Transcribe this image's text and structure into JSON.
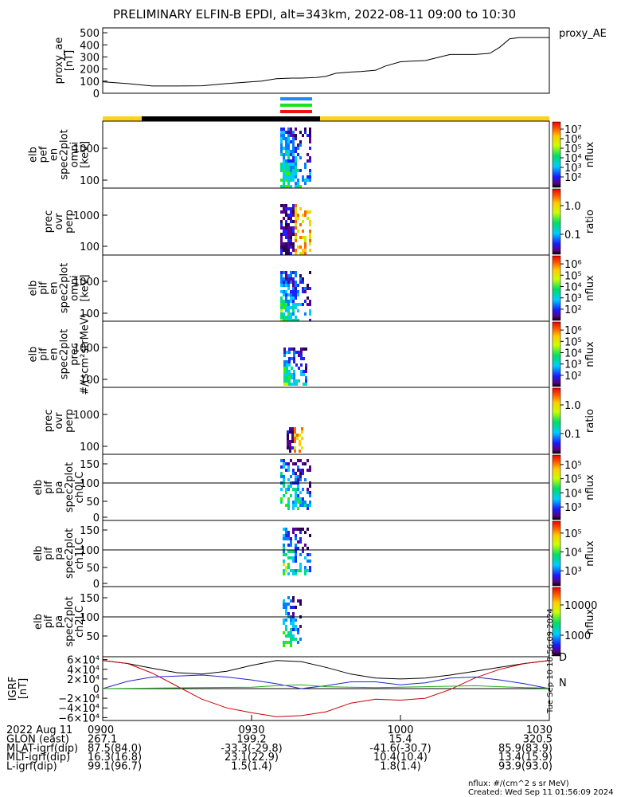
{
  "title": "PRELIMINARY ELFIN-B EPDI, alt=343km, 2022-08-11 09:00 to 10:30",
  "chart_data": [
    {
      "type": "line",
      "panel": "proxy_ae",
      "ylabel": "proxy_ae [nT]",
      "ytick_labels": [
        "0",
        "100",
        "200",
        "300",
        "400",
        "500"
      ],
      "ylim": [
        0,
        540
      ],
      "series": [
        {
          "name": "proxy_AE",
          "x_minutes_after_0900": [
            0,
            5,
            10,
            15,
            20,
            25,
            30,
            32,
            35,
            38,
            40,
            43,
            45,
            47,
            50,
            52,
            55,
            57,
            60,
            62,
            65,
            68,
            70,
            73,
            75,
            78,
            80,
            82,
            84,
            86,
            88,
            90
          ],
          "values": [
            95,
            80,
            60,
            60,
            62,
            80,
            95,
            100,
            120,
            125,
            125,
            130,
            140,
            165,
            175,
            180,
            190,
            225,
            260,
            265,
            270,
            300,
            320,
            320,
            320,
            330,
            380,
            450,
            460,
            460,
            460,
            460
          ]
        }
      ]
    },
    {
      "type": "heatmap",
      "panel": "elb pef en spec2plot omni",
      "ylabel": "elb pef en spec2plot omni [keV]",
      "yscale": "log",
      "ytick_labels": [
        "100",
        "1000"
      ],
      "colorbar_label": "nflux",
      "colorbar_ticks": [
        "10²",
        "10³",
        "10⁴",
        "10⁵",
        "10⁶",
        "10⁷"
      ]
    },
    {
      "type": "heatmap",
      "panel": "prec ovr perp",
      "ylabel": "prec ovr perp",
      "yscale": "log",
      "ytick_labels": [
        "100",
        "1000"
      ],
      "colorbar_label": "ratio",
      "colorbar_ticks": [
        "0.1",
        "1.0"
      ]
    },
    {
      "type": "heatmap",
      "panel": "elb pif en spec2plot omni",
      "ylabel": "elb pif en spec2plot omni [keV]",
      "yscale": "log",
      "ytick_labels": [
        "100",
        "1000"
      ],
      "colorbar_label": "nflux",
      "colorbar_ticks": [
        "10²",
        "10³",
        "10⁴",
        "10⁵",
        "10⁶"
      ]
    },
    {
      "type": "heatmap",
      "panel": "elb pif en spec2plot prec",
      "ylabel": "elb pif en spec2plot prec #/(scm²strMeV)",
      "yscale": "log",
      "ytick_labels": [
        "100",
        "1000"
      ],
      "colorbar_label": "nflux",
      "colorbar_ticks": [
        "10²",
        "10³",
        "10⁴",
        "10⁵",
        "10⁶"
      ]
    },
    {
      "type": "heatmap",
      "panel": "prec ovr perp (2)",
      "ylabel": "prec ovr perp",
      "yscale": "log",
      "ytick_labels": [
        "100",
        "1000"
      ],
      "colorbar_label": "ratio",
      "colorbar_ticks": [
        "0.1",
        "1.0"
      ]
    },
    {
      "type": "heatmap",
      "panel": "elb pif pa spec2plot ch0LC",
      "ylabel": "elb pif pa spec2plot ch0LC",
      "ytick_labels": [
        "0",
        "50",
        "100",
        "150"
      ],
      "ylim": [
        0,
        180
      ],
      "colorbar_label": "nflux",
      "colorbar_ticks": [
        "10³",
        "10⁴",
        "10⁵",
        "10⁵"
      ]
    },
    {
      "type": "heatmap",
      "panel": "elb pif pa spec2plot ch1LC",
      "ylabel": "elb pif pa spec2plot ch1LC",
      "ytick_labels": [
        "0",
        "50",
        "100",
        "150"
      ],
      "ylim": [
        0,
        180
      ],
      "colorbar_label": "nflux",
      "colorbar_ticks": [
        "10³",
        "10⁴",
        "10⁵"
      ]
    },
    {
      "type": "heatmap",
      "panel": "elb pif pa spec2plot ch2LC",
      "ylabel": "elb pif pa spec2plot ch2LC",
      "ytick_labels": [
        "50",
        "100",
        "150"
      ],
      "ylim": [
        0,
        180
      ],
      "colorbar_label": "nflux",
      "colorbar_ticks": [
        "1000",
        "10000"
      ]
    },
    {
      "type": "line",
      "panel": "IGRF",
      "ylabel": "IGRF [nT]",
      "ytick_labels": [
        "−6×10⁴",
        "−4×10⁴",
        "−2×10⁴",
        "0",
        "2×10⁴",
        "4×10⁴",
        "6×10⁴"
      ],
      "ylim": [
        -66000,
        66000
      ],
      "series": [
        {
          "name": "D",
          "color": "#000000",
          "x_minutes_after_0900": [
            0,
            5,
            10,
            15,
            20,
            25,
            30,
            35,
            40,
            45,
            50,
            55,
            60,
            65,
            70,
            75,
            80,
            85,
            90
          ],
          "values": [
            58000,
            52000,
            42000,
            33000,
            30000,
            36000,
            48000,
            58000,
            56000,
            44000,
            30000,
            22000,
            20000,
            22000,
            28000,
            36000,
            44000,
            52000,
            58000
          ]
        },
        {
          "name": "",
          "color": "#cc0000",
          "x_minutes_after_0900": [
            0,
            5,
            10,
            15,
            20,
            25,
            30,
            35,
            40,
            45,
            50,
            55,
            60,
            65,
            70,
            75,
            80,
            85,
            90
          ],
          "values": [
            58000,
            52000,
            32000,
            5000,
            -22000,
            -40000,
            -50000,
            -58000,
            -56000,
            -48000,
            -30000,
            -22000,
            -24000,
            -20000,
            -2000,
            22000,
            40000,
            52000,
            58000
          ]
        },
        {
          "name": "",
          "color": "#2222cc",
          "x_minutes_after_0900": [
            0,
            5,
            10,
            15,
            20,
            25,
            30,
            35,
            40,
            45,
            50,
            55,
            60,
            65,
            70,
            75,
            80,
            85,
            90
          ],
          "values": [
            0,
            15000,
            24000,
            26000,
            28000,
            24000,
            18000,
            10000,
            0,
            6000,
            14000,
            14000,
            8000,
            12000,
            22000,
            24000,
            18000,
            10000,
            0
          ]
        },
        {
          "name": "N",
          "color": "#22aa22",
          "x_minutes_after_0900": [
            0,
            10,
            20,
            30,
            35,
            40,
            45,
            50,
            55,
            60,
            65,
            70,
            75,
            80,
            85,
            90
          ],
          "values": [
            0,
            1000,
            2000,
            3000,
            6000,
            8000,
            4000,
            3000,
            2000,
            3000,
            4000,
            5000,
            6000,
            4000,
            2000,
            1000
          ]
        }
      ]
    }
  ],
  "x_axis": {
    "tick_labels": [
      "0900",
      "0930",
      "1000",
      "1030"
    ],
    "rows": [
      {
        "label": "2022 Aug 11",
        "values": [
          "0900",
          "0930",
          "1000",
          "1030"
        ]
      },
      {
        "label": "GLON (east)",
        "values": [
          "267.1",
          "199.2",
          "15.4",
          "320.5"
        ]
      },
      {
        "label": "MLAT-igrf(dip)",
        "values": [
          "87.5(84.0)",
          "-33.3(-29.8)",
          "-41.6(-30.7)",
          "85.9(83.9)"
        ]
      },
      {
        "label": "MLT-igrf(dip)",
        "values": [
          "16.3(16.8)",
          "23.1(22.9)",
          "10.4(10.4)",
          "13.4(15.9)"
        ]
      },
      {
        "label": "L-igrf(dip)",
        "values": [
          "99.1(96.7)",
          "1.5(1.4)",
          "1.8(1.4)",
          "93.9(93.0)"
        ]
      }
    ]
  },
  "footer": {
    "units": "nflux: #/(cm^2 s sr MeV)",
    "created": "Created: Wed Sep 11 01:56:09 2024"
  },
  "side_stamp": "Tue Sep 10 18:56:09 2024",
  "colors": {
    "sunlight": "#ffd21e",
    "shadow": "#000000",
    "bar_blue": "#2288ff",
    "bar_green": "#22dd22",
    "bar_red": "#ee1111"
  }
}
